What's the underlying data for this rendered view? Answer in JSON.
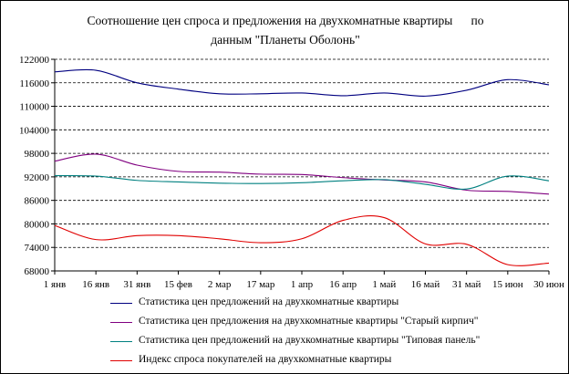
{
  "chart_data": {
    "type": "line",
    "title_line1": "Соотношение цен спроса и предложения на двухкомнатные квартиры      по",
    "title_line2": "данным \"Планеты Оболонь\"",
    "xlabel": "",
    "ylabel": "",
    "ylim": [
      68000,
      122000
    ],
    "yticks": [
      68000,
      74000,
      80000,
      86000,
      92000,
      98000,
      104000,
      110000,
      116000,
      122000
    ],
    "ytick_labels": [
      "68000",
      "74000",
      "80000",
      "86000",
      "92000",
      "98000",
      "104000",
      "110000",
      "116000",
      "122000"
    ],
    "categories": [
      "1 янв",
      "16 янв",
      "31 янв",
      "15 фев",
      "2 мар",
      "17 мар",
      "1 апр",
      "16 апр",
      "1 май",
      "16 май",
      "31 май",
      "15 июн",
      "30 июн"
    ],
    "grid": "horizontal-dashed",
    "legend_position": "bottom",
    "series": [
      {
        "name": "Статистика цен предложений на двухкомнатные квартиры",
        "color": "#000080",
        "values": [
          118800,
          119200,
          116000,
          114400,
          113200,
          113200,
          113400,
          112700,
          113400,
          112600,
          114100,
          116800,
          115500
        ]
      },
      {
        "name": "Статистика цен предложения на двухкомнатные квартиры \"Старый кирпич\"",
        "color": "#800080",
        "values": [
          96000,
          97800,
          95000,
          93400,
          93200,
          92700,
          92600,
          91800,
          91200,
          90700,
          88600,
          88300,
          87600
        ]
      },
      {
        "name": "Статистика цен предложений на двухкомнатные квартиры \"Типовая панель\"",
        "color": "#008080",
        "values": [
          92300,
          92200,
          91100,
          90700,
          90400,
          90300,
          90500,
          91000,
          91300,
          90100,
          88900,
          92200,
          91000
        ]
      },
      {
        "name": "Индекс спроса покупателей на двухкомнатные квартиры",
        "color": "#e00000",
        "values": [
          79600,
          76000,
          77000,
          77000,
          76200,
          75200,
          76200,
          80900,
          81600,
          74900,
          74800,
          69600,
          70000
        ]
      }
    ]
  }
}
